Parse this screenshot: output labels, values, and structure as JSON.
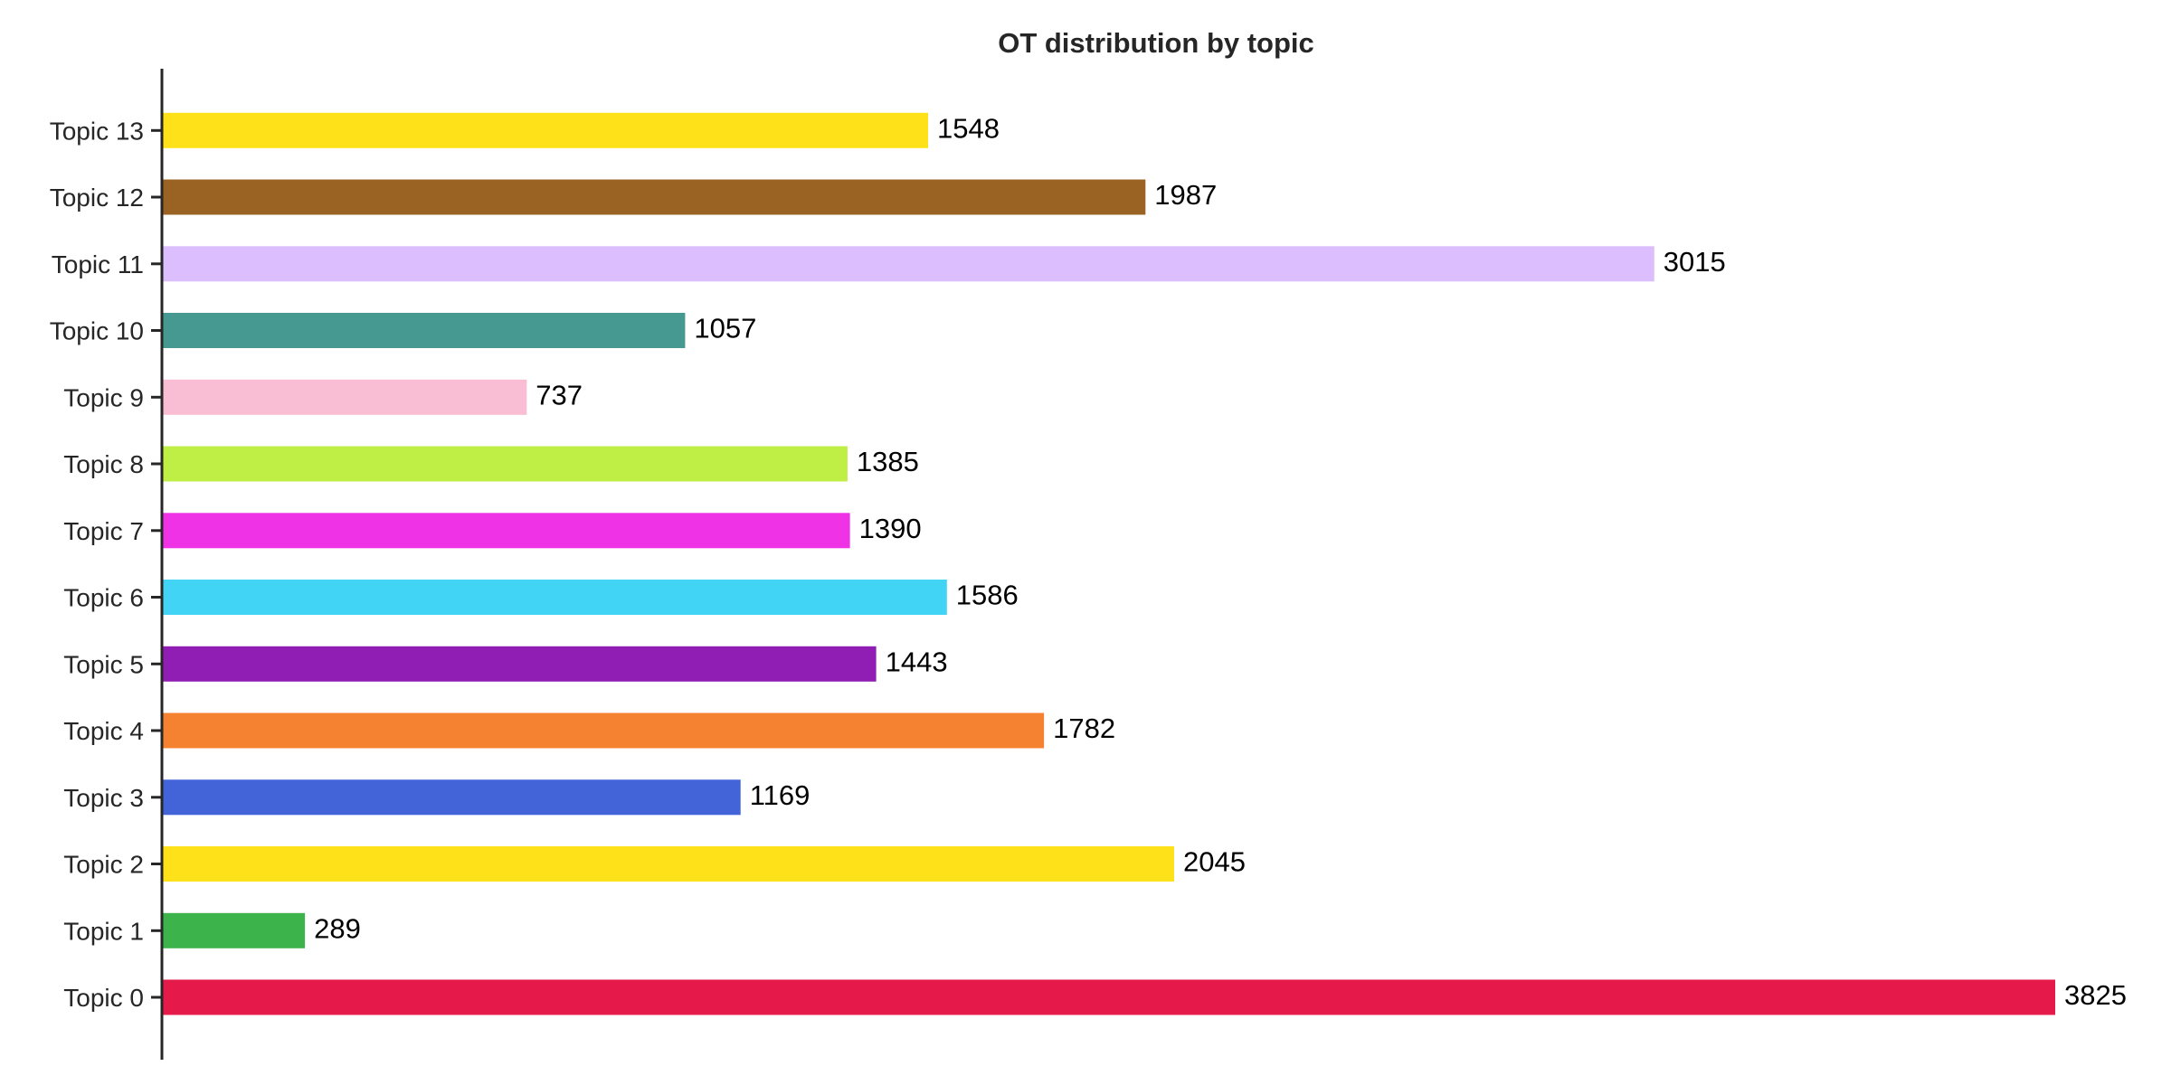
{
  "chart_data": {
    "type": "bar",
    "orientation": "horizontal",
    "title": "OT distribution by topic",
    "xlabel": "",
    "ylabel": "",
    "categories": [
      "Topic 0",
      "Topic 1",
      "Topic 2",
      "Topic 3",
      "Topic 4",
      "Topic 5",
      "Topic 6",
      "Topic 7",
      "Topic 8",
      "Topic 9",
      "Topic 10",
      "Topic 11",
      "Topic 12",
      "Topic 13"
    ],
    "values": [
      3825,
      289,
      2045,
      1169,
      1782,
      1443,
      1586,
      1390,
      1385,
      737,
      1057,
      3015,
      1987,
      1548
    ],
    "data_labels": [
      "3825",
      "289",
      "2045",
      "1169",
      "1782",
      "1443",
      "1586",
      "1390",
      "1385",
      "737",
      "1057",
      "3015",
      "1987",
      "1548"
    ],
    "colors": [
      "#e6194b",
      "#3cb44b",
      "#ffe119",
      "#4363d8",
      "#f58231",
      "#911eb4",
      "#42d4f4",
      "#f032e6",
      "#bfef45",
      "#fabed4",
      "#469990",
      "#dcbeff",
      "#9a6324",
      "#ffe119"
    ],
    "xlim": [
      0,
      3825
    ],
    "grid": false,
    "legend": "none"
  }
}
